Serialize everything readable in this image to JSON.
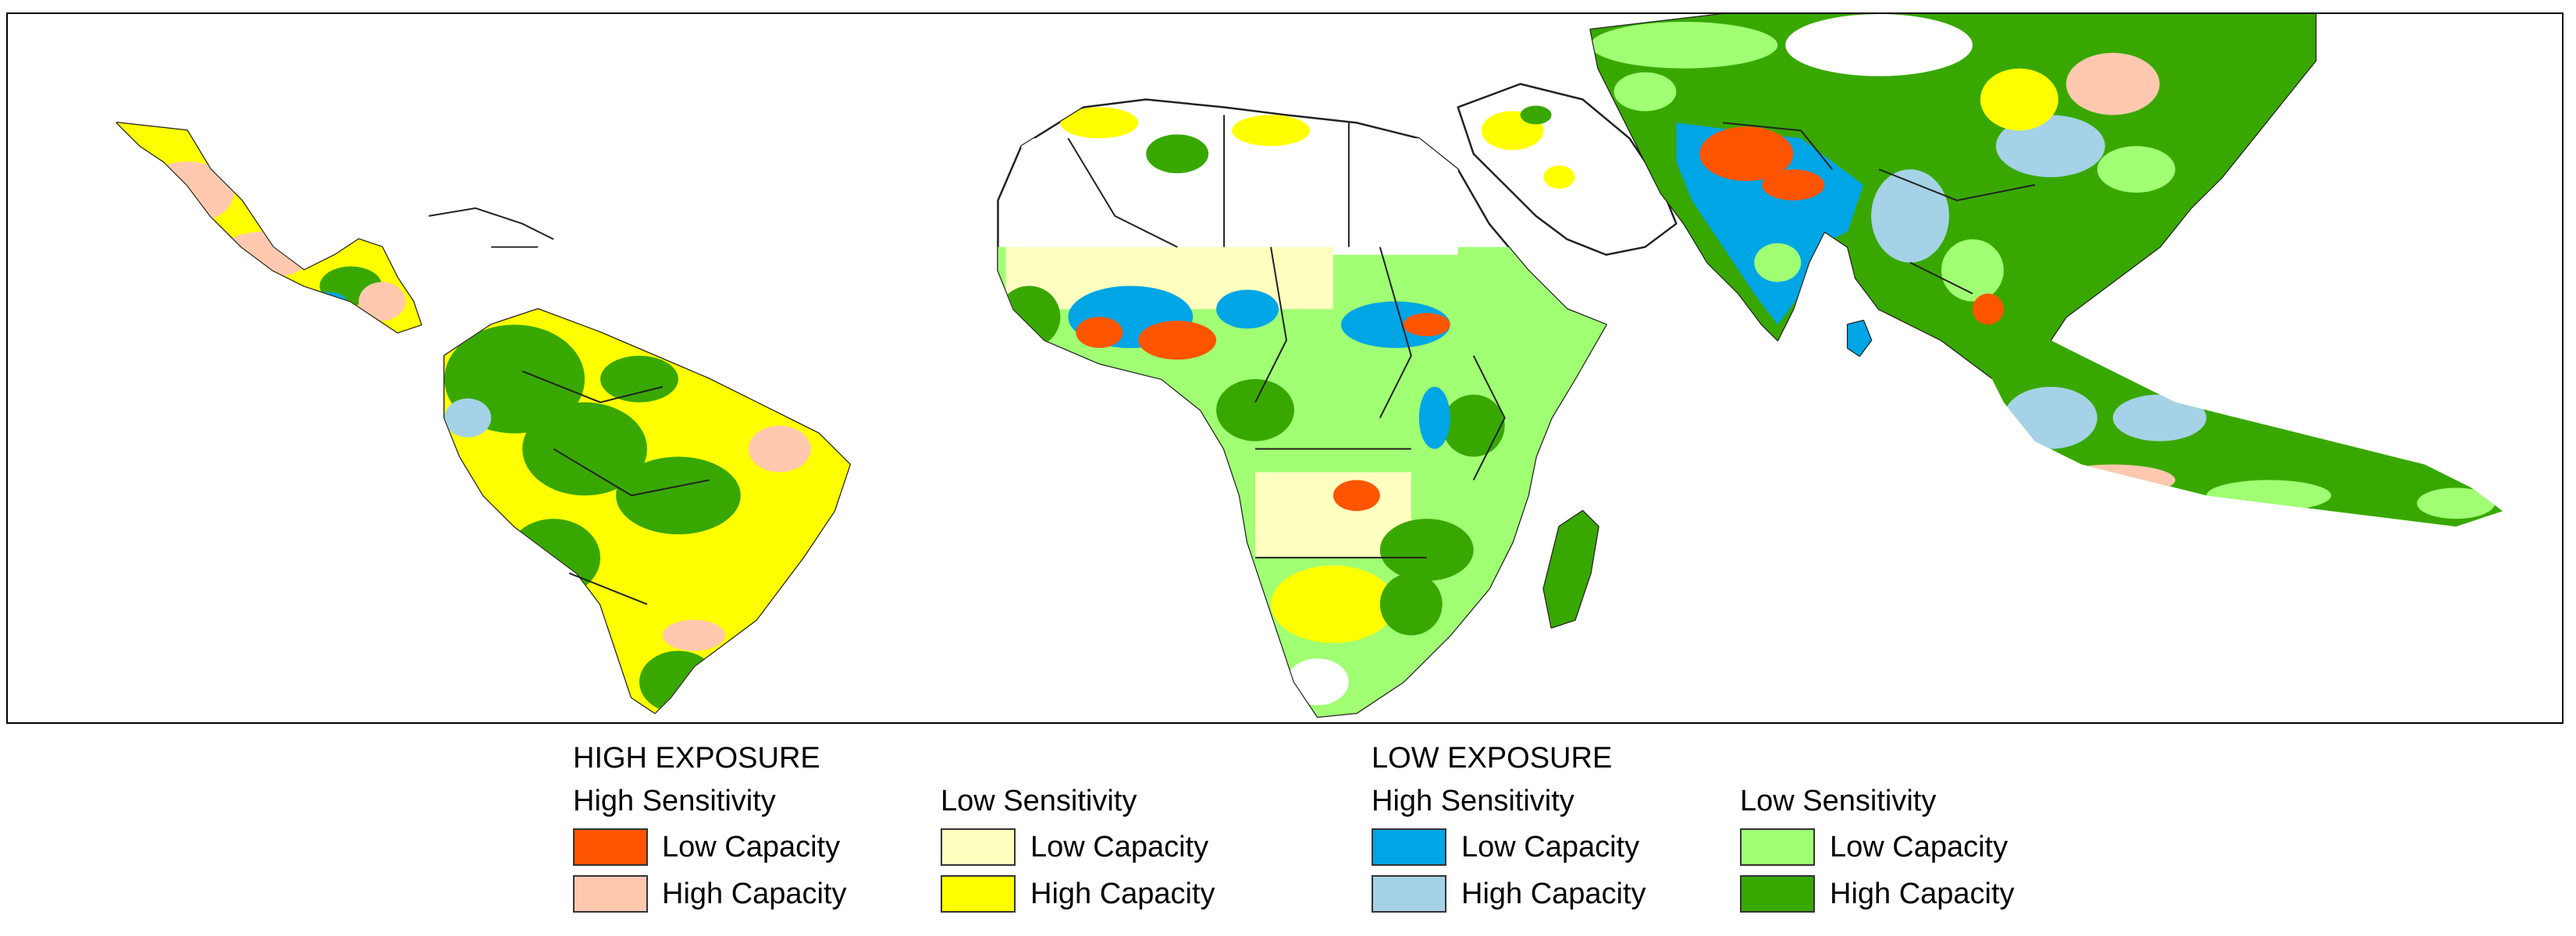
{
  "legend": {
    "groups": [
      {
        "heading": "HIGH EXPOSURE",
        "columns": [
          {
            "sensitivity": "High Sensitivity",
            "items": [
              {
                "label": "Low Capacity",
                "color": "#FF5500"
              },
              {
                "label": "High Capacity",
                "color": "#FFC8AF"
              }
            ]
          },
          {
            "sensitivity": "Low Sensitivity",
            "items": [
              {
                "label": "Low Capacity",
                "color": "#FFFFC0"
              },
              {
                "label": "High Capacity",
                "color": "#FFFF00"
              }
            ]
          }
        ]
      },
      {
        "heading": "LOW EXPOSURE",
        "columns": [
          {
            "sensitivity": "High Sensitivity",
            "items": [
              {
                "label": "Low Capacity",
                "color": "#00A5E6"
              },
              {
                "label": "High Capacity",
                "color": "#A5D2E6"
              }
            ]
          },
          {
            "sensitivity": "Low Sensitivity",
            "items": [
              {
                "label": "Low Capacity",
                "color": "#A0FF73"
              },
              {
                "label": "High Capacity",
                "color": "#38A800"
              }
            ]
          }
        ]
      }
    ]
  },
  "map": {
    "regions": [
      "Mexico and Central America",
      "South America",
      "Africa",
      "Middle East",
      "South Asia",
      "East Asia",
      "Southeast Asia"
    ]
  }
}
